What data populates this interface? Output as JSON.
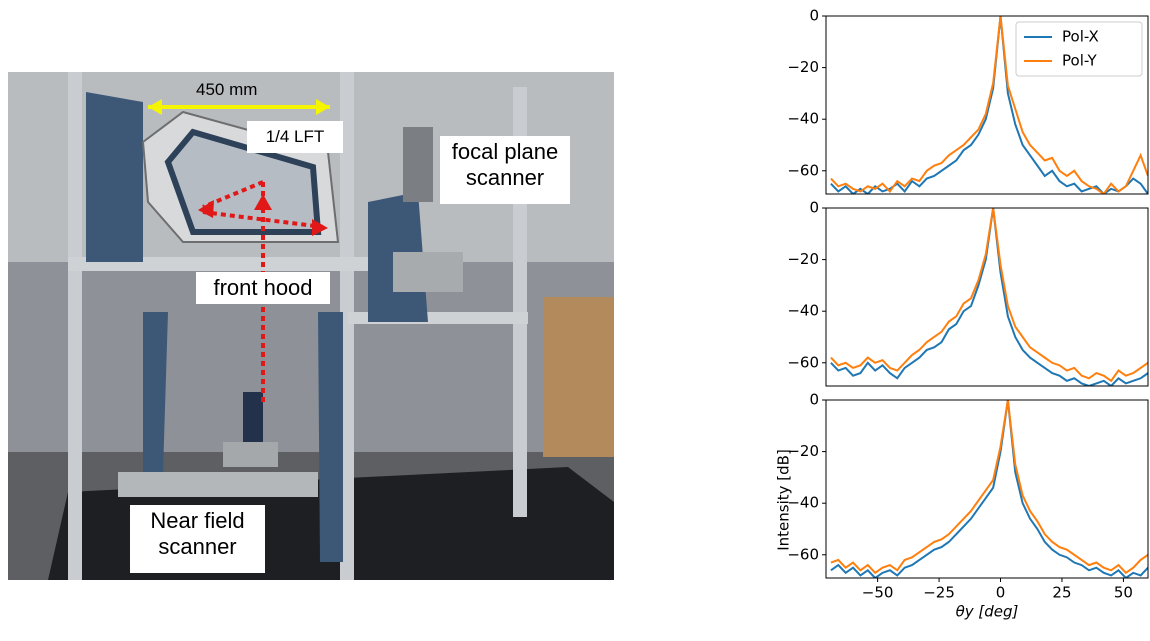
{
  "photo": {
    "annotations": {
      "width": "450 mm",
      "lft": "1/4 LFT",
      "focal": "focal plane scanner",
      "hood": "front hood",
      "near": "Near field scanner"
    }
  },
  "chart_data": [
    {
      "type": "line",
      "legend": "upper right",
      "x": [
        -69,
        -66,
        -63,
        -60,
        -57,
        -54,
        -51,
        -48,
        -45,
        -42,
        -39,
        -36,
        -33,
        -30,
        -27,
        -24,
        -21,
        -18,
        -15,
        -12,
        -9,
        -6,
        -3,
        0,
        3,
        6,
        9,
        12,
        15,
        18,
        21,
        24,
        27,
        30,
        33,
        36,
        39,
        42,
        45,
        48,
        51,
        54,
        57,
        60
      ],
      "series": [
        {
          "name": "Pol-X",
          "color": "#1f77b4",
          "values": [
            -65,
            -68,
            -66,
            -69,
            -67,
            -69,
            -66,
            -68,
            -67,
            -65,
            -68,
            -64,
            -66,
            -63,
            -62,
            -60,
            -58,
            -56,
            -52,
            -50,
            -46,
            -40,
            -28,
            0,
            -30,
            -42,
            -50,
            -54,
            -58,
            -62,
            -60,
            -64,
            -66,
            -65,
            -68,
            -67,
            -66,
            -69,
            -67,
            -68,
            -66,
            -63,
            -65,
            -69
          ]
        },
        {
          "name": "Pol-Y",
          "color": "#ff7f0e",
          "values": [
            -63,
            -66,
            -65,
            -67,
            -68,
            -66,
            -67,
            -65,
            -68,
            -64,
            -66,
            -63,
            -64,
            -60,
            -58,
            -57,
            -54,
            -52,
            -50,
            -47,
            -44,
            -38,
            -26,
            0,
            -27,
            -36,
            -45,
            -50,
            -53,
            -56,
            -55,
            -60,
            -62,
            -60,
            -64,
            -66,
            -67,
            -69,
            -65,
            -68,
            -66,
            -60,
            -54,
            -62
          ]
        }
      ],
      "xlim": [
        -71,
        60
      ],
      "ylim": [
        -69,
        0
      ],
      "yticks": [
        0,
        {
          "value": -20,
          "label": "−20"
        },
        {
          "value": -40,
          "label": "−40"
        },
        {
          "value": -60,
          "label": "−60"
        }
      ]
    },
    {
      "type": "line",
      "x": [
        -69,
        -66,
        -63,
        -60,
        -57,
        -54,
        -51,
        -48,
        -45,
        -42,
        -39,
        -36,
        -33,
        -30,
        -27,
        -24,
        -21,
        -18,
        -15,
        -12,
        -9,
        -6,
        -3,
        0,
        3,
        6,
        9,
        12,
        15,
        18,
        21,
        24,
        27,
        30,
        33,
        36,
        39,
        42,
        45,
        48,
        51,
        54,
        57,
        60
      ],
      "series": [
        {
          "name": "Pol-X",
          "color": "#1f77b4",
          "values": [
            -60,
            -63,
            -62,
            -65,
            -64,
            -60,
            -63,
            -61,
            -64,
            -66,
            -62,
            -60,
            -58,
            -55,
            -54,
            -52,
            -47,
            -45,
            -40,
            -38,
            -30,
            -20,
            0,
            -25,
            -42,
            -50,
            -55,
            -58,
            -60,
            -62,
            -64,
            -65,
            -67,
            -66,
            -68,
            -69,
            -68,
            -67,
            -69,
            -66,
            -68,
            -67,
            -66,
            -64
          ]
        },
        {
          "name": "Pol-Y",
          "color": "#ff7f0e",
          "values": [
            -58,
            -61,
            -60,
            -62,
            -61,
            -58,
            -60,
            -59,
            -62,
            -63,
            -60,
            -57,
            -55,
            -52,
            -50,
            -48,
            -44,
            -42,
            -37,
            -35,
            -28,
            -18,
            0,
            -22,
            -38,
            -46,
            -50,
            -54,
            -56,
            -58,
            -60,
            -61,
            -63,
            -62,
            -65,
            -66,
            -64,
            -65,
            -67,
            -63,
            -65,
            -64,
            -62,
            -60
          ]
        }
      ],
      "xlim": [
        -71,
        60
      ],
      "ylim": [
        -69,
        0
      ],
      "yticks": [
        0,
        {
          "value": -20,
          "label": "−20"
        },
        {
          "value": -40,
          "label": "−40"
        },
        {
          "value": -60,
          "label": "−60"
        }
      ]
    },
    {
      "type": "line",
      "xlabel": "θy [deg]",
      "ylabel": "Intensity [dB]",
      "x": [
        -69,
        -66,
        -63,
        -60,
        -57,
        -54,
        -51,
        -48,
        -45,
        -42,
        -39,
        -36,
        -33,
        -30,
        -27,
        -24,
        -21,
        -18,
        -15,
        -12,
        -9,
        -6,
        -3,
        0,
        3,
        6,
        9,
        12,
        15,
        18,
        21,
        24,
        27,
        30,
        33,
        36,
        39,
        42,
        45,
        48,
        51,
        54,
        57,
        60
      ],
      "series": [
        {
          "name": "Pol-X",
          "color": "#1f77b4",
          "values": [
            -66,
            -64,
            -67,
            -65,
            -68,
            -66,
            -69,
            -67,
            -66,
            -68,
            -65,
            -64,
            -62,
            -60,
            -58,
            -57,
            -55,
            -52,
            -49,
            -46,
            -42,
            -38,
            -34,
            -20,
            0,
            -28,
            -40,
            -46,
            -50,
            -55,
            -58,
            -60,
            -61,
            -63,
            -64,
            -66,
            -65,
            -67,
            -68,
            -66,
            -69,
            -67,
            -68,
            -65
          ]
        },
        {
          "name": "Pol-Y",
          "color": "#ff7f0e",
          "values": [
            -63,
            -62,
            -65,
            -63,
            -66,
            -64,
            -67,
            -65,
            -64,
            -66,
            -62,
            -61,
            -59,
            -57,
            -55,
            -54,
            -52,
            -49,
            -46,
            -43,
            -39,
            -35,
            -31,
            -18,
            0,
            -25,
            -37,
            -43,
            -47,
            -52,
            -55,
            -57,
            -58,
            -60,
            -62,
            -64,
            -63,
            -65,
            -66,
            -64,
            -67,
            -65,
            -62,
            -60
          ]
        }
      ],
      "xlim": [
        -71,
        60
      ],
      "ylim": [
        -69,
        0
      ],
      "xticks": [
        {
          "value": -50,
          "label": "−50"
        },
        {
          "value": -25,
          "label": "−25"
        },
        0,
        25,
        50
      ],
      "yticks": [
        0,
        {
          "value": -20,
          "label": "−20"
        },
        {
          "value": -40,
          "label": "−40"
        },
        {
          "value": -60,
          "label": "−60"
        }
      ]
    }
  ]
}
